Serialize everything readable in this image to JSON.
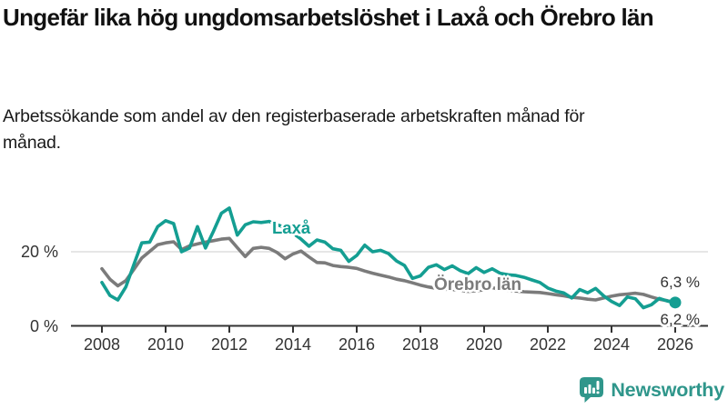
{
  "chart_data": {
    "type": "line",
    "title": "Ungefär lika hög ungdomsarbetslöshet i Laxå och Örebro län",
    "subtitle": "Arbetssökande som andel av den registerbaserade arbetskraften månad för månad.",
    "unit": "%",
    "x_start": 2008.0,
    "x_step": 0.25,
    "x_ticks": [
      2008,
      2010,
      2012,
      2014,
      2016,
      2018,
      2020,
      2022,
      2024,
      2026
    ],
    "x_range": [
      2008,
      2026.1
    ],
    "y_axis": {
      "ticks": [
        {
          "value": 20,
          "label": "20 %",
          "gridline": true
        },
        {
          "value": 0,
          "label": "0 %",
          "gridline": false
        }
      ],
      "range": [
        0,
        33
      ]
    },
    "grid": "horizontal, only at 20 %",
    "legend_position": "labels inline on lines",
    "series": [
      {
        "name": "Laxå",
        "color": "#149E92",
        "end_label": "6,3 %",
        "end_value": 6.3,
        "end_dot": true,
        "values": [
          11.7,
          8.2,
          7.0,
          10.5,
          16.5,
          22.4,
          22.6,
          26.8,
          28.4,
          27.6,
          20.0,
          21.0,
          26.8,
          21.0,
          25.5,
          30.4,
          31.8,
          24.5,
          27.3,
          28.1,
          27.9,
          28.2,
          27.3,
          26.6,
          25.0,
          23.4,
          21.5,
          23.2,
          22.6,
          20.8,
          20.4,
          17.4,
          19.0,
          21.8,
          20.0,
          20.4,
          19.5,
          17.5,
          16.3,
          12.8,
          13.5,
          15.8,
          16.5,
          15.2,
          16.2,
          14.9,
          14.1,
          15.7,
          14.4,
          15.4,
          14.2,
          13.8,
          13.6,
          13.1,
          12.4,
          11.7,
          10.2,
          9.4,
          8.9,
          7.5,
          9.8,
          8.9,
          10.1,
          8.1,
          6.6,
          5.5,
          7.8,
          7.3,
          4.9,
          5.7,
          7.4,
          6.7,
          6.3
        ]
      },
      {
        "name": "Örebro län",
        "color": "#7B7B7B",
        "end_label": "6,2 %",
        "end_value": 6.2,
        "end_dot": false,
        "values": [
          15.4,
          12.6,
          10.8,
          12.2,
          15.2,
          18.3,
          20.1,
          21.9,
          22.4,
          22.7,
          20.6,
          21.6,
          22.1,
          22.6,
          23.0,
          23.4,
          23.6,
          21.1,
          18.7,
          20.9,
          21.2,
          20.9,
          19.8,
          18.1,
          19.4,
          20.2,
          18.6,
          17.1,
          17.0,
          16.3,
          16.0,
          15.8,
          15.5,
          14.8,
          14.2,
          13.7,
          13.2,
          12.6,
          12.2,
          11.6,
          11.0,
          10.5,
          10.1,
          9.9,
          9.8,
          9.6,
          9.3,
          9.5,
          9.7,
          10.3,
          9.9,
          9.6,
          9.4,
          9.2,
          9.1,
          9.0,
          8.7,
          8.4,
          8.1,
          7.7,
          7.5,
          7.2,
          7.0,
          7.5,
          8.0,
          8.4,
          8.6,
          8.8,
          8.5,
          7.8,
          7.2,
          6.8,
          6.2
        ]
      }
    ],
    "colors": {
      "axis": "#333333",
      "gridline": "#D8D8D8",
      "text": "#333333",
      "brand": "#2F968B"
    }
  },
  "footer": {
    "brand": "Newsworthy"
  }
}
